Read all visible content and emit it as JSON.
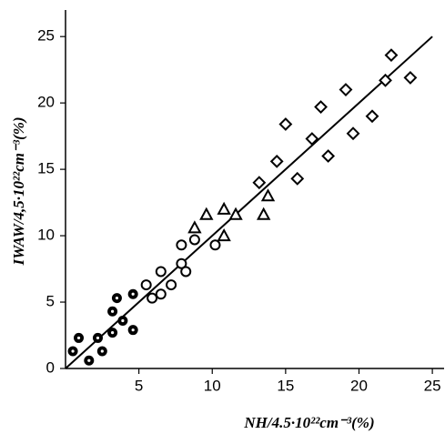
{
  "chart_data": {
    "type": "scatter",
    "x_label": "NH/4.5·10²²cm⁻³(%)",
    "y_label": "IWAW/4,5·10²²cm⁻³(%)",
    "xlim": [
      0,
      25.8
    ],
    "ylim": [
      0,
      27
    ],
    "xticks": [
      5,
      10,
      15,
      20,
      25
    ],
    "yticks": [
      0,
      5,
      10,
      15,
      20,
      25
    ],
    "grid": false,
    "series": [
      {
        "marker": "bullseye",
        "color": "#000000",
        "x": [
          0.5,
          0.9,
          1.6,
          2.2,
          2.5,
          3.2,
          3.2,
          3.5,
          3.9,
          4.6,
          4.6
        ],
        "values": [
          1.3,
          2.3,
          0.6,
          2.3,
          1.3,
          2.7,
          4.3,
          5.3,
          3.6,
          2.9,
          5.6
        ]
      },
      {
        "marker": "circle",
        "color": "#000000",
        "x": [
          5.5,
          5.9,
          6.5,
          6.5,
          7.2,
          7.9,
          7.9,
          8.2,
          8.8,
          10.2
        ],
        "values": [
          6.3,
          5.3,
          7.3,
          5.6,
          6.3,
          9.3,
          7.9,
          7.3,
          9.7,
          9.3
        ]
      },
      {
        "marker": "triangle",
        "color": "#000000",
        "x": [
          8.8,
          9.6,
          10.8,
          10.8,
          11.6,
          13.5,
          13.8
        ],
        "values": [
          10.6,
          11.6,
          12.0,
          10.0,
          11.6,
          11.6,
          13.0
        ]
      },
      {
        "marker": "diamond",
        "color": "#000000",
        "x": [
          13.2,
          14.4,
          15.0,
          15.8,
          16.8,
          17.4,
          17.9,
          19.1,
          19.6,
          20.9,
          21.8,
          22.2,
          23.5
        ],
        "values": [
          14.0,
          15.6,
          18.4,
          14.3,
          17.3,
          19.7,
          16.0,
          21.0,
          17.7,
          19.0,
          21.7,
          23.6,
          21.9
        ]
      }
    ],
    "trend_line": {
      "color": "#000000",
      "x": [
        0,
        25
      ],
      "values": [
        0,
        25
      ]
    }
  }
}
